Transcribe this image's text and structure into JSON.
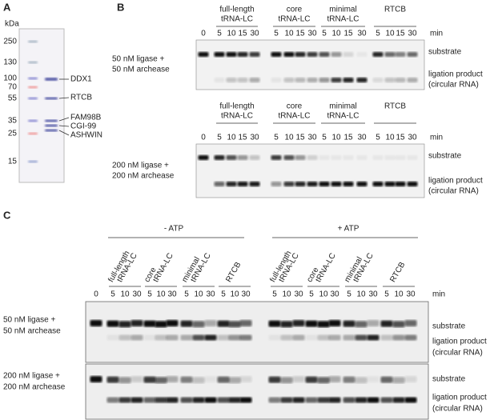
{
  "panel_a": {
    "label": "A",
    "unit": "kDa",
    "markers": [
      "250",
      "130",
      "100",
      "70",
      "55",
      "35",
      "25",
      "15"
    ],
    "proteins": [
      "DDX1",
      "RTCB",
      "FAM98B",
      "CGI-99",
      "ASHWIN"
    ]
  },
  "panel_b": {
    "label": "B",
    "gels": [
      {
        "groups": [
          [
            "full-length",
            "tRNA-LC"
          ],
          [
            "core",
            "tRNA-LC"
          ],
          [
            "minimal",
            "tRNA-LC"
          ],
          [
            "RTCB"
          ]
        ],
        "times": [
          "0",
          "5",
          "10",
          "15",
          "30",
          "5",
          "10",
          "15",
          "30",
          "5",
          "10",
          "15",
          "30",
          "5",
          "10",
          "15",
          "30"
        ],
        "unit": "min",
        "condition": [
          "50 nM ligase +",
          "50 nM archease"
        ],
        "substrate": "substrate",
        "product": [
          "ligation product",
          "(circular RNA)"
        ]
      },
      {
        "groups": [
          [
            "full-length",
            "tRNA-LC"
          ],
          [
            "core",
            "tRNA-LC"
          ],
          [
            "minimal",
            "tRNA-LC"
          ],
          [
            "RTCB"
          ]
        ],
        "times": [
          "0",
          "5",
          "10",
          "15",
          "30",
          "5",
          "10",
          "15",
          "30",
          "5",
          "10",
          "15",
          "30",
          "5",
          "10",
          "15",
          "30"
        ],
        "unit": "min",
        "condition": [
          "200 nM ligase +",
          "200 nM archease"
        ],
        "substrate": "substrate",
        "product": [
          "ligation product",
          "(circular RNA)"
        ]
      }
    ]
  },
  "panel_c": {
    "label": "C",
    "atp": [
      "- ATP",
      "+ ATP"
    ],
    "groups": [
      [
        "full-length",
        "tRNA-LC"
      ],
      [
        "core",
        "tRNA-LC"
      ],
      [
        "minimal",
        "tRNA-LC"
      ],
      [
        "RTCB"
      ],
      [
        "full-length",
        "tRNA-LC"
      ],
      [
        "core",
        "tRNA-LC"
      ],
      [
        "minimal",
        "tRNA-LC"
      ],
      [
        "RTCB"
      ]
    ],
    "times": [
      "0",
      "5",
      "10",
      "30",
      "5",
      "10",
      "30",
      "5",
      "10",
      "30",
      "5",
      "10",
      "30",
      "5",
      "10",
      "30",
      "5",
      "10",
      "30",
      "5",
      "10",
      "30",
      "5",
      "10",
      "30"
    ],
    "unit": "min",
    "rows": [
      {
        "condition": [
          "50 nM ligase +",
          "50 nM archease"
        ],
        "substrate": "substrate",
        "product": [
          "ligation product",
          "(circular RNA)"
        ]
      },
      {
        "condition": [
          "200 nM ligase +",
          "200 nM archease"
        ],
        "substrate": "substrate",
        "product": [
          "ligation product",
          "(circular RNA)"
        ]
      }
    ]
  }
}
